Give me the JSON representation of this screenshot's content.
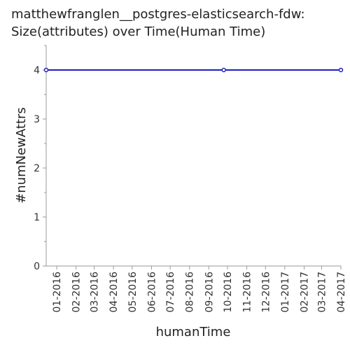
{
  "chart_data": {
    "type": "line",
    "title": {
      "line1": "matthewfranglen__postgres-elasticsearch-fdw:",
      "line2": "Size(attributes) over Time(Human Time)"
    },
    "xlabel": "humanTime",
    "ylabel": "#numNewAttrs",
    "x_tick_labels": [
      "01-2016",
      "02-2016",
      "03-2016",
      "04-2016",
      "05-2016",
      "06-2016",
      "07-2016",
      "08-2016",
      "09-2016",
      "10-2016",
      "11-2016",
      "12-2016",
      "01-2017",
      "02-2017",
      "03-2017",
      "04-2017"
    ],
    "y_ticks": [
      0,
      1,
      2,
      3,
      4
    ],
    "ylim": [
      0,
      4.5
    ],
    "xlim": [
      "2015-12-15",
      "2017-04-01"
    ],
    "grid": false,
    "series": [
      {
        "color": "#1f1fbf",
        "points": [
          {
            "x": "2015-12-15",
            "y": 4
          },
          {
            "x": "2016-09-25",
            "y": 4
          },
          {
            "x": "2017-04-01",
            "y": 4
          }
        ]
      }
    ]
  }
}
